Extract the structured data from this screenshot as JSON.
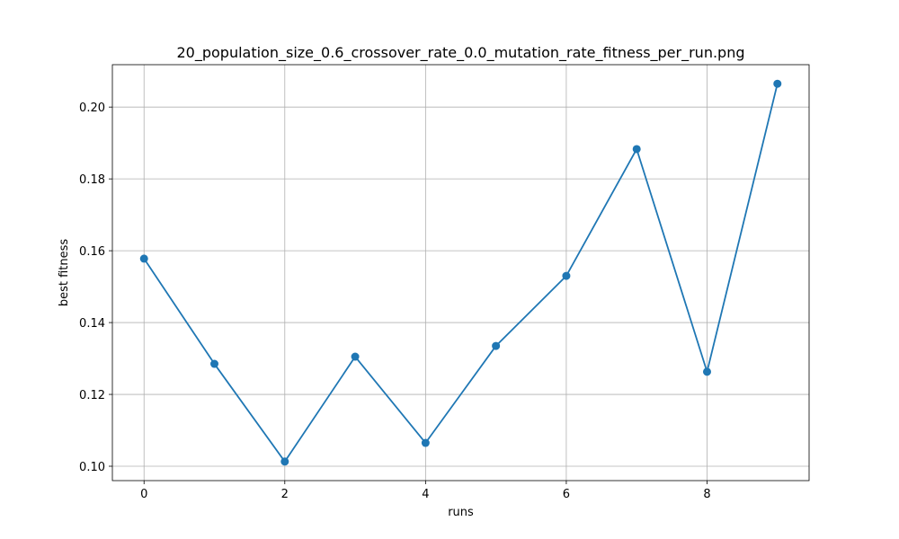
{
  "colors": {
    "series": "#1f77b4",
    "grid": "#b0b0b0",
    "axis": "#000000",
    "background": "#ffffff"
  },
  "chart_data": {
    "type": "line",
    "title": "20_population_size_0.6_crossover_rate_0.0_mutation_rate_fitness_per_run.png",
    "xlabel": "runs",
    "ylabel": "best fitness",
    "x": [
      0,
      1,
      2,
      3,
      4,
      5,
      6,
      7,
      8,
      9
    ],
    "series": [
      {
        "values": [
          0.1578,
          0.1285,
          0.1013,
          0.1305,
          0.1065,
          0.1335,
          0.153,
          0.1883,
          0.1263,
          0.2065
        ]
      }
    ],
    "xticks": [
      0,
      2,
      4,
      6,
      8
    ],
    "xtick_labels": [
      "0",
      "2",
      "4",
      "6",
      "8"
    ],
    "yticks": [
      0.1,
      0.12,
      0.14,
      0.16,
      0.18,
      0.2
    ],
    "ytick_labels": [
      "0.10",
      "0.12",
      "0.14",
      "0.16",
      "0.18",
      "0.20"
    ],
    "xlim": [
      -0.45,
      9.45
    ],
    "ylim": [
      0.096,
      0.2118
    ],
    "grid": true,
    "marker": "circle",
    "legend": "none"
  }
}
